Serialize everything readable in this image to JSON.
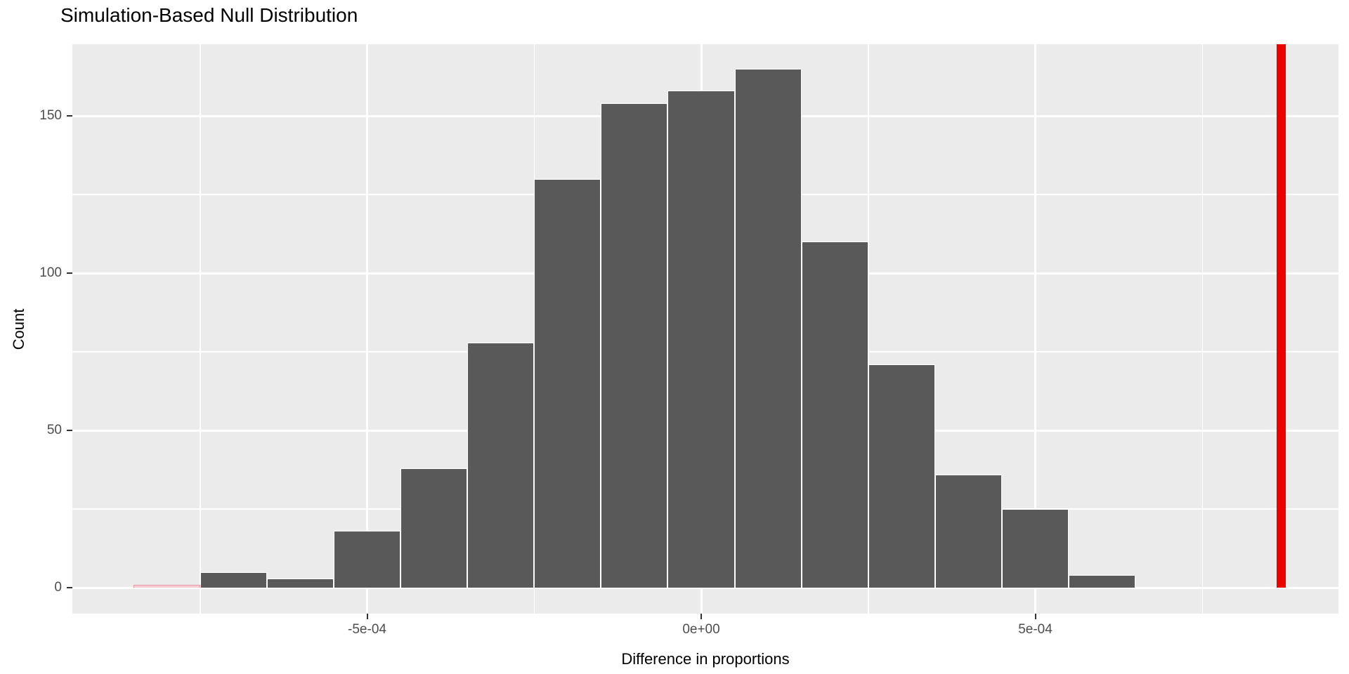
{
  "title": "Simulation-Based Null Distribution",
  "chart_data": {
    "type": "bar",
    "subtype": "histogram",
    "title": "Simulation-Based Null Distribution",
    "xlabel": "Difference in proportions",
    "ylabel": "Count",
    "legend": "none",
    "grid": "on",
    "panel_bg": "#EBEBEB",
    "grid_color": "#FFFFFF",
    "bar_fill": "#595959",
    "bar_border": "#FFFFFF",
    "shaded_fill": "#F8CCD3",
    "shaded_border": "#E897A3",
    "observed_line_color": "#EE0000",
    "observed_stat": 0.000868,
    "bin_width": 0.0001,
    "bins": {
      "centers": [
        -0.0008,
        -0.0007,
        -0.0006,
        -0.0005,
        -0.0004,
        -0.0003,
        -0.0002,
        -0.0001,
        0.0,
        0.0001,
        0.0002,
        0.0003,
        0.0004,
        0.0005,
        0.0006
      ],
      "counts": [
        1,
        5,
        3,
        18,
        38,
        78,
        130,
        154,
        158,
        165,
        110,
        71,
        36,
        25,
        4
      ],
      "shaded_bin_index": 0
    },
    "x_ticks": [
      {
        "value": -0.0005,
        "label": "-5e-04"
      },
      {
        "value": 0.0,
        "label": "0e+00"
      },
      {
        "value": 0.0005,
        "label": "5e-04"
      }
    ],
    "x_minor_values": [
      -0.00075,
      -0.00025,
      0.00025,
      0.00075
    ],
    "y_ticks": [
      {
        "value": 0,
        "label": "0"
      },
      {
        "value": 50,
        "label": "50"
      },
      {
        "value": 100,
        "label": "100"
      },
      {
        "value": 150,
        "label": "150"
      }
    ],
    "y_minor_values": [
      25,
      75,
      125
    ],
    "xlim": [
      -0.00094,
      0.00095
    ],
    "ylim": [
      0,
      173
    ]
  }
}
